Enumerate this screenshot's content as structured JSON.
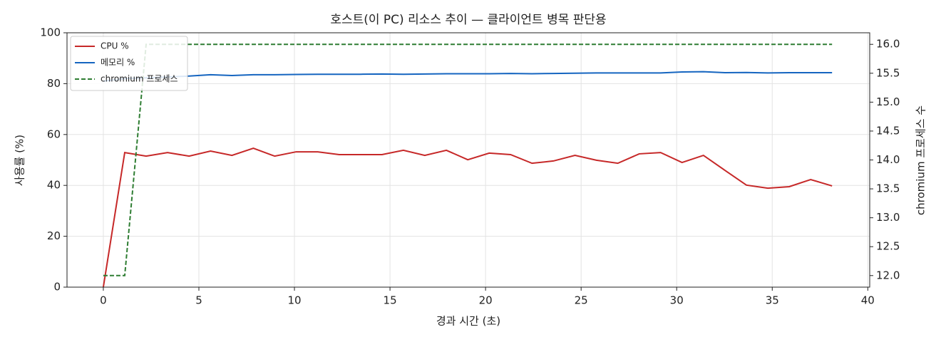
{
  "chart_data": {
    "type": "line",
    "title": "호스트(이 PC) 리소스 추이 — 클라이언트 병목 판단용",
    "xlabel": "경과 시간 (초)",
    "ylabel": "사용률 (%)",
    "y2label": "chromium 프로세스 수",
    "x": [
      0,
      1.12,
      2.24,
      3.36,
      4.49,
      5.61,
      6.73,
      7.85,
      8.97,
      10.09,
      11.22,
      12.34,
      13.46,
      14.58,
      15.7,
      16.82,
      17.95,
      19.07,
      20.19,
      21.31,
      22.43,
      23.55,
      24.68,
      25.8,
      26.92,
      28.04,
      29.16,
      30.28,
      31.4,
      32.53,
      33.65,
      34.77,
      35.89,
      37.01,
      38.13
    ],
    "series": [
      {
        "name": "CPU %",
        "color": "#c62828",
        "linestyle": "solid",
        "values": [
          0,
          52.9,
          51.5,
          52.9,
          51.5,
          53.5,
          51.8,
          54.6,
          51.5,
          53.2,
          53.2,
          52.1,
          52.1,
          52.1,
          53.8,
          51.8,
          53.8,
          50.1,
          52.7,
          52.1,
          48.7,
          49.6,
          51.8,
          49.9,
          48.7,
          52.4,
          52.9,
          49.0,
          51.8,
          45.9,
          40.1,
          38.9,
          39.5,
          42.3,
          39.8
        ]
      },
      {
        "name": "메모리 %",
        "color": "#1565c0",
        "linestyle": "solid",
        "values": [
          81.0,
          82.0,
          82.3,
          82.6,
          83.0,
          83.5,
          83.2,
          83.5,
          83.5,
          83.6,
          83.7,
          83.7,
          83.7,
          83.8,
          83.7,
          83.8,
          83.9,
          83.9,
          83.9,
          84.0,
          83.9,
          84.0,
          84.1,
          84.2,
          84.2,
          84.2,
          84.2,
          84.6,
          84.7,
          84.3,
          84.4,
          84.2,
          84.3,
          84.3,
          84.3
        ]
      },
      {
        "name": "chromium 프로세스",
        "color": "#2e7d32",
        "linestyle": "dashed",
        "axis": "y2",
        "values": [
          12,
          12,
          16,
          16,
          16,
          16,
          16,
          16,
          16,
          16,
          16,
          16,
          16,
          16,
          16,
          16,
          16,
          16,
          16,
          16,
          16,
          16,
          16,
          16,
          16,
          16,
          16,
          16,
          16,
          16,
          16,
          16,
          16,
          16,
          16
        ]
      }
    ],
    "xlim": [
      -1.9,
      40.1
    ],
    "xticks": [
      0,
      5,
      10,
      15,
      20,
      25,
      30,
      35,
      40
    ],
    "ylim": [
      0,
      100
    ],
    "yticks": [
      0,
      20,
      40,
      60,
      80,
      100
    ],
    "y2lim": [
      11.8,
      16.2
    ],
    "y2ticks": [
      {
        "value": 12,
        "label": "12.0"
      },
      12.5,
      {
        "value": 13,
        "label": "13.0"
      },
      13.5,
      {
        "value": 14,
        "label": "14.0"
      },
      14.5,
      {
        "value": 15,
        "label": "15.0"
      },
      15.5,
      {
        "value": 16,
        "label": "16.0"
      }
    ],
    "grid": true,
    "legend": "upper left"
  }
}
